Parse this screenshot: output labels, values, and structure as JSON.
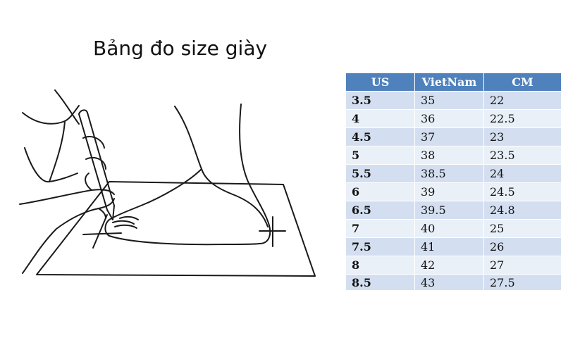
{
  "title": "Bảng đo size giày",
  "illustration": {
    "icon": "foot-measurement-drawing"
  },
  "colors": {
    "header_bg": "#4f81bd",
    "header_text": "#ffffff",
    "row_odd": "#d3dff0",
    "row_even": "#eaf0f8"
  },
  "table": {
    "headers": [
      "US",
      "VietNam",
      "CM"
    ],
    "rows": [
      [
        "3.5",
        "35",
        "22"
      ],
      [
        "4",
        "36",
        "22.5"
      ],
      [
        "4.5",
        "37",
        "23"
      ],
      [
        "5",
        "38",
        "23.5"
      ],
      [
        "5.5",
        "38.5",
        "24"
      ],
      [
        "6",
        "39",
        "24.5"
      ],
      [
        "6.5",
        "39.5",
        "24.8"
      ],
      [
        "7",
        "40",
        "25"
      ],
      [
        "7.5",
        "41",
        "26"
      ],
      [
        "8",
        "42",
        "27"
      ],
      [
        "8.5",
        "43",
        "27.5"
      ]
    ]
  }
}
